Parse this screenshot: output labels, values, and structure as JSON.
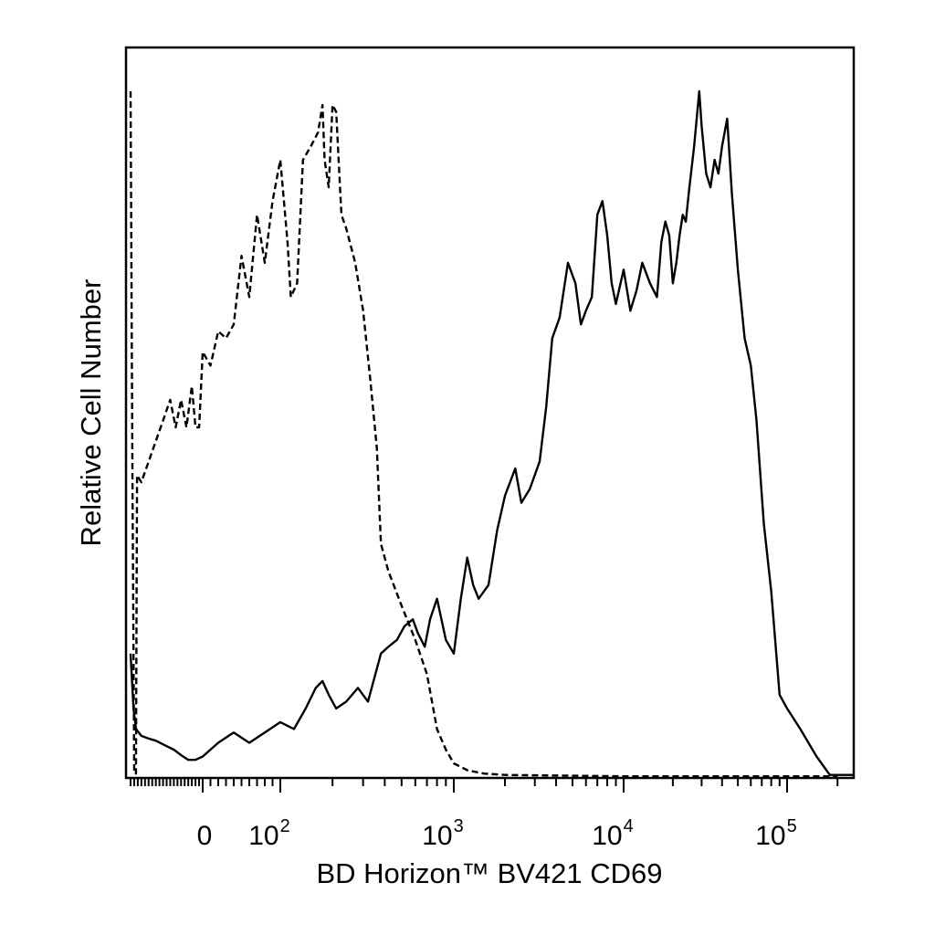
{
  "chart_data": {
    "type": "line",
    "title": "",
    "xlabel": "BD Horizon™ BV421 CD69",
    "ylabel": "Relative Cell Number",
    "x_scale": "biexponential",
    "xlim": [
      -200,
      250000
    ],
    "ylim": [
      0,
      100
    ],
    "grid": false,
    "legend": "none",
    "x_ticks": [
      {
        "value": 0,
        "base": "0",
        "exp": ""
      },
      {
        "value": 100,
        "base": "10",
        "exp": "2"
      },
      {
        "value": 1000,
        "base": "10",
        "exp": "3"
      },
      {
        "value": 10000,
        "base": "10",
        "exp": "4"
      },
      {
        "value": 100000,
        "base": "10",
        "exp": "5"
      }
    ],
    "series": [
      {
        "style": "dashed",
        "color": "#000000",
        "points": [
          [
            -200,
            100
          ],
          [
            -195,
            45
          ],
          [
            -190,
            0.5
          ],
          [
            -185,
            0.5
          ],
          [
            -182,
            44
          ],
          [
            -170,
            43
          ],
          [
            -150,
            46
          ],
          [
            -130,
            49
          ],
          [
            -110,
            52
          ],
          [
            -90,
            55
          ],
          [
            -75,
            51
          ],
          [
            -60,
            55
          ],
          [
            -45,
            51
          ],
          [
            -30,
            57
          ],
          [
            -20,
            51
          ],
          [
            -10,
            51
          ],
          [
            0,
            62
          ],
          [
            10,
            60
          ],
          [
            20,
            65
          ],
          [
            30,
            64
          ],
          [
            40,
            66
          ],
          [
            50,
            76
          ],
          [
            60,
            70
          ],
          [
            70,
            82
          ],
          [
            80,
            75
          ],
          [
            90,
            84
          ],
          [
            100,
            90
          ],
          [
            110,
            78
          ],
          [
            115,
            70
          ],
          [
            125,
            72
          ],
          [
            135,
            90
          ],
          [
            150,
            92
          ],
          [
            165,
            94
          ],
          [
            175,
            98
          ],
          [
            180,
            90
          ],
          [
            190,
            86
          ],
          [
            200,
            98
          ],
          [
            210,
            97
          ],
          [
            225,
            82
          ],
          [
            240,
            80
          ],
          [
            270,
            75
          ],
          [
            300,
            68
          ],
          [
            330,
            58
          ],
          [
            360,
            48
          ],
          [
            380,
            34
          ],
          [
            420,
            30
          ],
          [
            500,
            25
          ],
          [
            600,
            20
          ],
          [
            700,
            15
          ],
          [
            800,
            7
          ],
          [
            900,
            4
          ],
          [
            1000,
            2
          ],
          [
            1200,
            1
          ],
          [
            1500,
            0.5
          ],
          [
            2000,
            0.3
          ],
          [
            10000,
            0.1
          ],
          [
            100000,
            0.1
          ],
          [
            200000,
            0.1
          ]
        ]
      },
      {
        "style": "solid",
        "color": "#000000",
        "points": [
          [
            -200,
            18
          ],
          [
            -192,
            10
          ],
          [
            -185,
            7
          ],
          [
            -170,
            6
          ],
          [
            -150,
            5.6
          ],
          [
            -130,
            5.3
          ],
          [
            -100,
            4.5
          ],
          [
            -80,
            4
          ],
          [
            -60,
            3.2
          ],
          [
            -40,
            2.5
          ],
          [
            -20,
            2.5
          ],
          [
            0,
            3
          ],
          [
            20,
            5
          ],
          [
            40,
            6.5
          ],
          [
            60,
            5
          ],
          [
            80,
            6.5
          ],
          [
            100,
            8
          ],
          [
            120,
            7
          ],
          [
            140,
            10
          ],
          [
            160,
            13
          ],
          [
            175,
            14
          ],
          [
            190,
            12
          ],
          [
            210,
            10
          ],
          [
            240,
            11
          ],
          [
            280,
            13
          ],
          [
            320,
            11
          ],
          [
            380,
            18
          ],
          [
            420,
            19
          ],
          [
            470,
            20
          ],
          [
            520,
            22
          ],
          [
            580,
            23
          ],
          [
            620,
            21
          ],
          [
            680,
            19
          ],
          [
            730,
            23
          ],
          [
            800,
            26
          ],
          [
            900,
            20
          ],
          [
            1000,
            18
          ],
          [
            1100,
            26
          ],
          [
            1200,
            32
          ],
          [
            1300,
            28
          ],
          [
            1400,
            26
          ],
          [
            1600,
            28
          ],
          [
            1800,
            36
          ],
          [
            2000,
            41
          ],
          [
            2300,
            45
          ],
          [
            2500,
            40
          ],
          [
            2800,
            42
          ],
          [
            3200,
            46
          ],
          [
            3500,
            54
          ],
          [
            3800,
            64
          ],
          [
            4200,
            67
          ],
          [
            4700,
            75
          ],
          [
            5200,
            72
          ],
          [
            5600,
            66
          ],
          [
            6000,
            68
          ],
          [
            6500,
            70
          ],
          [
            7000,
            82
          ],
          [
            7500,
            84
          ],
          [
            8000,
            79
          ],
          [
            8500,
            72
          ],
          [
            9000,
            69
          ],
          [
            10000,
            74
          ],
          [
            11000,
            68
          ],
          [
            12000,
            71
          ],
          [
            13000,
            75
          ],
          [
            14500,
            72
          ],
          [
            16000,
            70
          ],
          [
            17000,
            78
          ],
          [
            18000,
            81
          ],
          [
            19000,
            79
          ],
          [
            20000,
            72
          ],
          [
            21000,
            75
          ],
          [
            22000,
            79
          ],
          [
            23000,
            82
          ],
          [
            24000,
            81
          ],
          [
            25000,
            85
          ],
          [
            27000,
            92
          ],
          [
            29000,
            100
          ],
          [
            30000,
            95
          ],
          [
            32000,
            88
          ],
          [
            34000,
            86
          ],
          [
            36000,
            90
          ],
          [
            38000,
            88
          ],
          [
            40000,
            92
          ],
          [
            43000,
            96
          ],
          [
            46000,
            85
          ],
          [
            50000,
            74
          ],
          [
            55000,
            64
          ],
          [
            60000,
            60
          ],
          [
            65000,
            52
          ],
          [
            72000,
            37
          ],
          [
            80000,
            27
          ],
          [
            90000,
            12
          ],
          [
            100000,
            10
          ],
          [
            120000,
            7
          ],
          [
            150000,
            3
          ],
          [
            180000,
            0.3
          ],
          [
            250000,
            0.3
          ]
        ]
      }
    ]
  }
}
